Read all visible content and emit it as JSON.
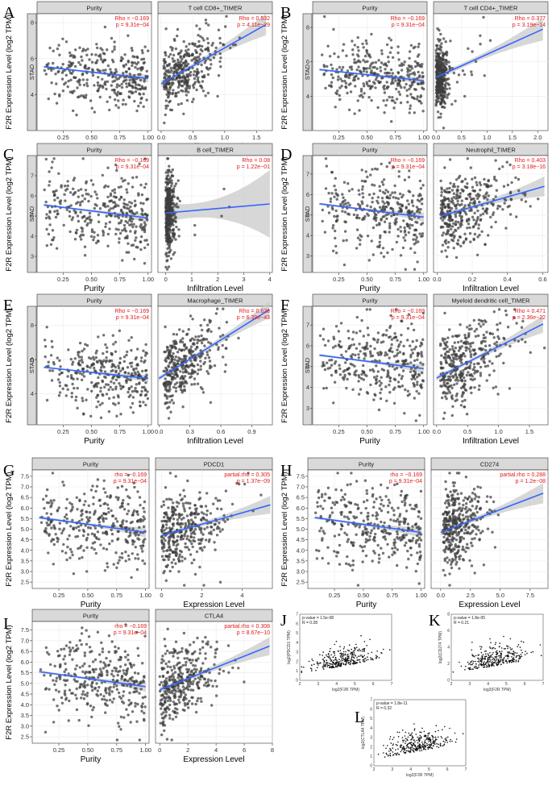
{
  "colors": {
    "point": "#3d3d3d",
    "line": "#3366ff",
    "band": "#c9c9c9",
    "stat": "#e41a1c",
    "strip": "#d9d9d9",
    "gepia_point": "#111111"
  },
  "chart_data": [
    {
      "type": "scatter",
      "panel": "A",
      "cancer": "STAD",
      "ylabel": "F2R Expression Level (log2 TPM)",
      "ylim": [
        2,
        8.5
      ],
      "yticks": [
        4,
        6,
        8
      ],
      "facets": [
        {
          "strip": "Purity",
          "xlabel": "Purity",
          "xlim": [
            0.02,
            1.03
          ],
          "xticks": [
            "0.25",
            "0.50",
            "0.75",
            "1.00"
          ],
          "xtick_values": [
            0.25,
            0.5,
            0.75,
            1.0
          ],
          "stat1": "Rho = −0.169",
          "stat2": "p = 9.31e−04",
          "fit": {
            "x": [
              0.08,
              1.0
            ],
            "y": [
              5.55,
              4.9
            ],
            "band": 0.18
          },
          "seed": 11,
          "n": 330,
          "x_dist": "purity"
        },
        {
          "strip": "T cell CD8+_TIMER",
          "xlabel": "Infiltration Level",
          "xlim": [
            -0.05,
            1.75
          ],
          "xticks": [
            "0.0",
            "0.5",
            "1.0",
            "1.5"
          ],
          "xtick_values": [
            0,
            0.5,
            1.0,
            1.5
          ],
          "stat1": "Rho = 0.532",
          "stat2": "p = 4.11e−29",
          "fit": {
            "x": [
              0,
              1.65
            ],
            "y": [
              4.6,
              7.9
            ],
            "band": 0.5
          },
          "seed": 12,
          "n": 360,
          "x_dist": "skew"
        }
      ]
    },
    {
      "type": "scatter",
      "panel": "B",
      "cancer": "STAD",
      "ylabel": "F2R Expression Level (log2 TPM)",
      "ylim": [
        2,
        8.8
      ],
      "yticks": [
        4,
        6,
        8
      ],
      "facets": [
        {
          "strip": "Purity",
          "xlabel": "Purity",
          "xlim": [
            0.02,
            1.03
          ],
          "xticks": [
            "0.25",
            "0.50",
            "0.75",
            "1.00"
          ],
          "xtick_values": [
            0.25,
            0.5,
            0.75,
            1.0
          ],
          "stat1": "Rho = −0.169",
          "stat2": "p = 9.31e−04",
          "fit": {
            "x": [
              0.08,
              1.0
            ],
            "y": [
              5.55,
              4.9
            ],
            "band": 0.18
          },
          "seed": 21,
          "n": 330,
          "x_dist": "purity"
        },
        {
          "strip": "T cell CD4+_TIMER",
          "xlabel": "Infiltration Level",
          "xlim": [
            -0.05,
            2.2
          ],
          "xticks": [
            "0.0",
            "0.5",
            "1.0",
            "1.5",
            "2.0"
          ],
          "xtick_values": [
            0,
            0.5,
            1.0,
            1.5,
            2.0
          ],
          "stat1": "Rho = 0.377",
          "stat2": "p = 3.19e−14",
          "fit": {
            "x": [
              0,
              2.1
            ],
            "y": [
              5.1,
              7.9
            ],
            "band": 0.55
          },
          "seed": 22,
          "n": 360,
          "x_dist": "tight"
        }
      ]
    },
    {
      "type": "scatter",
      "panel": "C",
      "cancer": "STAD",
      "ylabel": "F2R Expression Level (log2 TPM)",
      "ylim": [
        2.2,
        8.0
      ],
      "yticks": [
        3,
        4,
        5,
        6,
        7
      ],
      "facets": [
        {
          "strip": "Purity",
          "xlabel": "Purity",
          "xlim": [
            0.02,
            1.03
          ],
          "xticks": [
            "0.25",
            "0.50",
            "0.75",
            "1.00"
          ],
          "xtick_values": [
            0.25,
            0.5,
            0.75,
            1.0
          ],
          "stat1": "Rho = −0.169",
          "stat2": "p = 9.31e−04",
          "fit": {
            "x": [
              0.08,
              1.0
            ],
            "y": [
              5.55,
              4.9
            ],
            "band": 0.18
          },
          "seed": 31,
          "n": 330,
          "x_dist": "purity"
        },
        {
          "strip": "B cell_TIMER",
          "xlabel": "Infiltration Level",
          "xlim": [
            -0.3,
            4.1
          ],
          "xticks": [
            "0",
            "1",
            "2",
            "3",
            "4"
          ],
          "xtick_values": [
            0,
            1,
            2,
            3,
            4
          ],
          "stat1": "Rho = 0.08",
          "stat2": "p = 1.22e−01",
          "fit": {
            "x": [
              0,
              4.0
            ],
            "y": [
              5.15,
              5.6
            ],
            "band": 1.4
          },
          "seed": 32,
          "n": 360,
          "x_dist": "spike"
        }
      ]
    },
    {
      "type": "scatter",
      "panel": "D",
      "cancer": "STAD",
      "ylabel": "F2R Expression Level (log2 TPM)",
      "ylim": [
        2.2,
        7.9
      ],
      "yticks": [
        3,
        4,
        5,
        6,
        7
      ],
      "facets": [
        {
          "strip": "Purity",
          "xlabel": "Purity",
          "xlim": [
            0.02,
            1.03
          ],
          "xticks": [
            "0.25",
            "0.50",
            "0.75",
            "1.00"
          ],
          "xtick_values": [
            0.25,
            0.5,
            0.75,
            1.0
          ],
          "stat1": "Rho = −0.169",
          "stat2": "p = 9.31e−04",
          "fit": {
            "x": [
              0.08,
              1.0
            ],
            "y": [
              5.55,
              4.9
            ],
            "band": 0.18
          },
          "seed": 41,
          "n": 330,
          "x_dist": "purity"
        },
        {
          "strip": "Neutrophil_TIMER",
          "xlabel": "Infiltration Level",
          "xlim": [
            -0.02,
            0.63
          ],
          "xticks": [
            "0.0",
            "0.2",
            "0.4",
            "0.6"
          ],
          "xtick_values": [
            0,
            0.2,
            0.4,
            0.6
          ],
          "stat1": "Rho = 0.403",
          "stat2": "p = 3.18e−16",
          "fit": {
            "x": [
              0.02,
              0.61
            ],
            "y": [
              4.95,
              6.4
            ],
            "band": 0.4
          },
          "seed": 42,
          "n": 360,
          "x_dist": "mid"
        }
      ]
    },
    {
      "type": "scatter",
      "panel": "E",
      "cancer": "STAD",
      "ylabel": "F2R Expression Level (log2 TPM)",
      "ylim": [
        2.2,
        9.1
      ],
      "yticks": [
        4,
        6,
        8
      ],
      "facets": [
        {
          "strip": "Purity",
          "xlabel": "Purity",
          "xlim": [
            0.02,
            1.03
          ],
          "xticks": [
            "0.25",
            "0.50",
            "0.75",
            "1.00"
          ],
          "xtick_values": [
            0.25,
            0.5,
            0.75,
            1.0
          ],
          "stat1": "Rho = −0.169",
          "stat2": "p = 9.31e−04",
          "fit": {
            "x": [
              0.08,
              1.0
            ],
            "y": [
              5.55,
              4.9
            ],
            "band": 0.18
          },
          "seed": 51,
          "n": 330,
          "x_dist": "purity"
        },
        {
          "strip": "Macrophage_TIMER",
          "xlabel": "Infiltration Level",
          "xlim": [
            -0.01,
            1.1
          ],
          "xticks": [
            "0.0",
            "0.3",
            "0.6",
            "0.9"
          ],
          "xtick_values": [
            0,
            0.3,
            0.6,
            0.9
          ],
          "stat1": "Rho = 0.628",
          "stat2": "p = 6.39e−43",
          "fit": {
            "x": [
              0.0,
              1.07
            ],
            "y": [
              4.9,
              8.9
            ],
            "band": 0.4
          },
          "seed": 52,
          "n": 360,
          "x_dist": "skew"
        }
      ]
    },
    {
      "type": "scatter",
      "panel": "F",
      "cancer": "STAD",
      "ylabel": "F2R Expression Level (log2 TPM)",
      "ylim": [
        2.2,
        7.9
      ],
      "yticks": [
        3,
        4,
        5,
        6,
        7
      ],
      "facets": [
        {
          "strip": "Purity",
          "xlabel": "Purity",
          "xlim": [
            0.02,
            1.03
          ],
          "xticks": [
            "0.25",
            "0.50",
            "0.75",
            "1.00"
          ],
          "xtick_values": [
            0.25,
            0.5,
            0.75,
            1.0
          ],
          "stat1": "Rho = −0.169",
          "stat2": "p = 9.31e−04",
          "fit": {
            "x": [
              0.08,
              1.0
            ],
            "y": [
              5.55,
              4.9
            ],
            "band": 0.18
          },
          "seed": 61,
          "n": 330,
          "x_dist": "purity"
        },
        {
          "strip": "Myeloid dendritic cell_TIMER",
          "xlabel": "Infiltration Level",
          "xlim": [
            -0.05,
            1.8
          ],
          "xticks": [
            "0.0",
            "0.5",
            "1.0",
            "1.5"
          ],
          "xtick_values": [
            0,
            0.5,
            1.0,
            1.5
          ],
          "stat1": "Rho = 0.471",
          "stat2": "p = 2.36e−22",
          "fit": {
            "x": [
              0.0,
              1.72
            ],
            "y": [
              4.45,
              7.05
            ],
            "band": 0.35
          },
          "seed": 62,
          "n": 360,
          "x_dist": "mid"
        }
      ]
    },
    {
      "type": "scatter",
      "panel": "G",
      "cancer": "",
      "ylabel": "F2R Expression Level (log2 TPM)",
      "ylim": [
        2.2,
        7.8
      ],
      "yticks": [
        2.5,
        3.0,
        3.5,
        4.0,
        4.5,
        5.0,
        5.5,
        6.0,
        6.5,
        7.0,
        7.5
      ],
      "ytick_labels": [
        "2.5",
        "3.0",
        "3.5",
        "4.0",
        "4.5",
        "5.0",
        "5.5",
        "6.0",
        "6.5",
        "7.0",
        "7.5"
      ],
      "facets": [
        {
          "strip": "Purity",
          "xlabel": "Purity",
          "xlim": [
            0.02,
            1.03
          ],
          "xticks": [
            "0.25",
            "0.50",
            "0.75",
            "1.00"
          ],
          "xtick_values": [
            0.25,
            0.5,
            0.75,
            1.0
          ],
          "stat1": "rho = −0.169",
          "stat2": "p = 9.31e−04",
          "fit": {
            "x": [
              0.08,
              1.0
            ],
            "y": [
              5.55,
              4.85
            ],
            "band": 0.2
          },
          "seed": 71,
          "n": 330,
          "x_dist": "purity"
        },
        {
          "strip": "PDCD1",
          "xlabel": "Expression Level",
          "xlim": [
            -0.3,
            5.5
          ],
          "xticks": [
            "0",
            "2",
            "4"
          ],
          "xtick_values": [
            0,
            2,
            4
          ],
          "stat1": "partial.rho = 0.305",
          "stat2": "p = 1.37e−09",
          "fit": {
            "x": [
              0.0,
              5.4
            ],
            "y": [
              4.7,
              6.15
            ],
            "band": 0.35
          },
          "seed": 72,
          "n": 360,
          "x_dist": "expr"
        }
      ]
    },
    {
      "type": "scatter",
      "panel": "H",
      "cancer": "",
      "ylabel": "F2R Expression Level (log2 TPM)",
      "ylim": [
        2.2,
        7.8
      ],
      "yticks": [
        2.5,
        3.0,
        3.5,
        4.0,
        4.5,
        5.0,
        5.5,
        6.0,
        6.5,
        7.0,
        7.5
      ],
      "ytick_labels": [
        "2.5",
        "3.0",
        "3.5",
        "4.0",
        "4.5",
        "5.0",
        "5.5",
        "6.0",
        "6.5",
        "7.0",
        "7.5"
      ],
      "facets": [
        {
          "strip": "Purity",
          "xlabel": "Purity",
          "xlim": [
            0.02,
            1.03
          ],
          "xticks": [
            "0.25",
            "0.50",
            "0.75",
            "1.00"
          ],
          "xtick_values": [
            0.25,
            0.5,
            0.75,
            1.0
          ],
          "stat1": "rho = −0.169",
          "stat2": "p = 9.31e−04",
          "fit": {
            "x": [
              0.08,
              1.0
            ],
            "y": [
              5.55,
              4.85
            ],
            "band": 0.2
          },
          "seed": 81,
          "n": 330,
          "x_dist": "purity"
        },
        {
          "strip": "CD274",
          "xlabel": "Expression Level",
          "xlim": [
            -0.8,
            9.0
          ],
          "xticks": [
            "0.0",
            "2.5",
            "5.0",
            "7.5"
          ],
          "xtick_values": [
            0,
            2.5,
            5.0,
            7.5
          ],
          "stat1": "partial.rho = 0.288",
          "stat2": "p = 1.2e−08",
          "fit": {
            "x": [
              0.0,
              8.6
            ],
            "y": [
              4.85,
              6.7
            ],
            "band": 0.4
          },
          "seed": 82,
          "n": 360,
          "x_dist": "expr2"
        }
      ]
    },
    {
      "type": "scatter",
      "panel": "I",
      "cancer": "",
      "ylabel": "F2R Expression Level (log2 TPM)",
      "ylim": [
        2.2,
        7.9
      ],
      "yticks": [
        2.5,
        3.0,
        3.5,
        4.0,
        4.5,
        5.0,
        5.5,
        6.0,
        6.5,
        7.0,
        7.5
      ],
      "ytick_labels": [
        "2.5",
        "3.0",
        "3.5",
        "4.0",
        "4.5",
        "5.0",
        "5.5",
        "6.0",
        "6.5",
        "7.0",
        "7.5"
      ],
      "facets": [
        {
          "strip": "Purity",
          "xlabel": "Purity",
          "xlim": [
            0.02,
            1.03
          ],
          "xticks": [
            "0.25",
            "0.50",
            "0.75",
            "1.00"
          ],
          "xtick_values": [
            0.25,
            0.5,
            0.75,
            1.0
          ],
          "stat1": "rho = −0.169",
          "stat2": "p = 9.31e−04",
          "fit": {
            "x": [
              0.08,
              1.0
            ],
            "y": [
              5.55,
              4.85
            ],
            "band": 0.2
          },
          "seed": 91,
          "n": 330,
          "x_dist": "purity"
        },
        {
          "strip": "CTLA4",
          "xlabel": "Expression Level",
          "xlim": [
            -0.3,
            8.0
          ],
          "xticks": [
            "0",
            "2",
            "4",
            "6",
            "8"
          ],
          "xtick_values": [
            0,
            2,
            4,
            6,
            8
          ],
          "stat1": "partial.rho = 0.308",
          "stat2": "p = 8.67e−10",
          "fit": {
            "x": [
              0.0,
              7.8
            ],
            "y": [
              4.7,
              6.75
            ],
            "band": 0.35
          },
          "seed": 92,
          "n": 360,
          "x_dist": "expr"
        }
      ]
    },
    {
      "type": "scatter",
      "panel": "J",
      "style": "gepia",
      "xlabel": "log2(F2R TPM)",
      "ylabel": "log2(PDCD1 TPM)",
      "stat1": "p-value = 1.5e-08",
      "stat2": "R = 0.28",
      "xlim": [
        2,
        7
      ],
      "xticks": [
        "2",
        "3",
        "4",
        "5",
        "6",
        "7"
      ],
      "xtick_values": [
        2,
        3,
        4,
        5,
        6,
        7
      ],
      "ylim": [
        0,
        7
      ],
      "yticks": [
        "0",
        "1",
        "2",
        "3",
        "4",
        "5",
        "6",
        "7"
      ],
      "ytick_values": [
        0,
        1,
        2,
        3,
        4,
        5,
        6,
        7
      ],
      "seed": 101,
      "n": 320
    },
    {
      "type": "scatter",
      "panel": "K",
      "style": "gepia",
      "xlabel": "log2(F2R TPM)",
      "ylabel": "log2(CD274 TPM)",
      "stat1": "p-value = 1.8e-05",
      "stat2": "R = 0.21",
      "xlim": [
        2,
        7
      ],
      "xticks": [
        "2",
        "3",
        "4",
        "5",
        "6",
        "7"
      ],
      "xtick_values": [
        2,
        3,
        4,
        5,
        6,
        7
      ],
      "ylim": [
        0,
        8
      ],
      "yticks": [
        "0",
        "2",
        "4",
        "6",
        "8"
      ],
      "ytick_values": [
        0,
        2,
        4,
        6,
        8
      ],
      "seed": 111,
      "n": 320
    },
    {
      "type": "scatter",
      "panel": "L",
      "style": "gepia",
      "xlabel": "log2(F2R TPM)",
      "ylabel": "log2(CTLA4 TPM)",
      "stat1": "p-value = 1.8e-11",
      "stat2": "R = 0.32",
      "xlim": [
        2,
        7
      ],
      "xticks": [
        "2",
        "3",
        "4",
        "5",
        "6",
        "7"
      ],
      "xtick_values": [
        2,
        3,
        4,
        5,
        6,
        7
      ],
      "ylim": [
        0,
        7
      ],
      "yticks": [
        "0",
        "1",
        "2",
        "3",
        "4",
        "5",
        "6",
        "7"
      ],
      "ytick_values": [
        0,
        1,
        2,
        3,
        4,
        5,
        6,
        7
      ],
      "seed": 121,
      "n": 320
    }
  ]
}
